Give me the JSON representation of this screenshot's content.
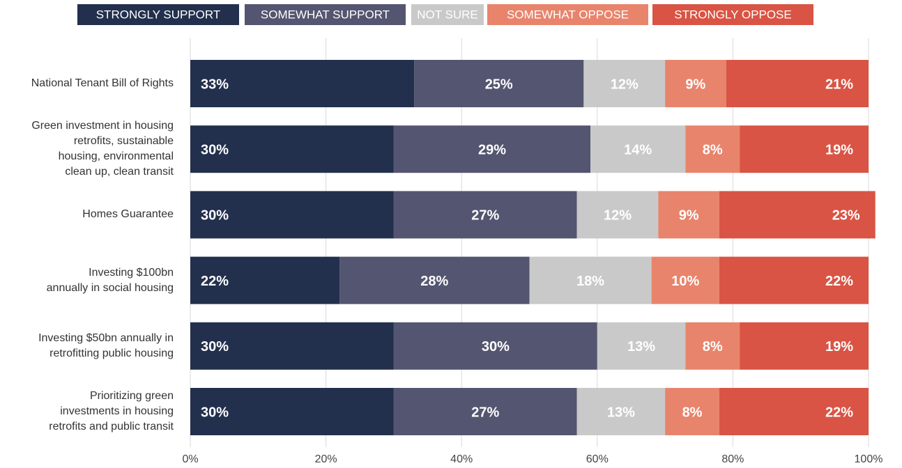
{
  "chart_data": {
    "type": "stacked-bar-horizontal",
    "categories": [
      "National Tenant Bill of Rights",
      "Green investment in housing\nretrofits, sustainable\nhousing, environmental\nclean up, clean transit",
      "Homes Guarantee",
      "Investing $100bn\nannually in social housing",
      "Investing $50bn annually in\nretrofitting public housing",
      "Prioritizing green\ninvestments in housing\nretrofits and public transit"
    ],
    "series": [
      {
        "name": "STRONGLY SUPPORT",
        "color": "#22304d",
        "values": [
          33,
          30,
          30,
          22,
          30,
          30
        ],
        "value_labels": [
          "33%",
          "30%",
          "30%",
          "22%",
          "30%",
          "30%"
        ]
      },
      {
        "name": "SOMEWHAT SUPPORT",
        "color": "#545570",
        "values": [
          25,
          29,
          27,
          28,
          30,
          27
        ],
        "value_labels": [
          "25%",
          "29%",
          "27%",
          "28%",
          "30%",
          "27%"
        ]
      },
      {
        "name": "NOT SURE",
        "color": "#c9c9c9",
        "values": [
          12,
          14,
          12,
          18,
          13,
          13
        ],
        "value_labels": [
          "12%",
          "14%",
          "12%",
          "18%",
          "13%",
          "13%"
        ]
      },
      {
        "name": "SOMEWHAT OPPOSE",
        "color": "#e8846c",
        "values": [
          9,
          8,
          9,
          10,
          8,
          8
        ],
        "value_labels": [
          "9%",
          "8%",
          "9%",
          "10%",
          "8%",
          "8%"
        ]
      },
      {
        "name": "STRONGLY OPPOSE",
        "color": "#d95444",
        "values": [
          21,
          19,
          23,
          22,
          19,
          22
        ],
        "value_labels": [
          "21%",
          "19%",
          "23%",
          "22%",
          "19%",
          "22%"
        ]
      }
    ],
    "xlim": [
      0,
      100
    ],
    "xticks": [
      {
        "value": 0,
        "label": "0%"
      },
      {
        "value": 20,
        "label": "20%"
      },
      {
        "value": 40,
        "label": "40%"
      },
      {
        "value": 60,
        "label": "60%"
      },
      {
        "value": 80,
        "label": "80%"
      },
      {
        "value": 100,
        "label": "100%"
      }
    ],
    "grid": true,
    "legend": "top"
  }
}
